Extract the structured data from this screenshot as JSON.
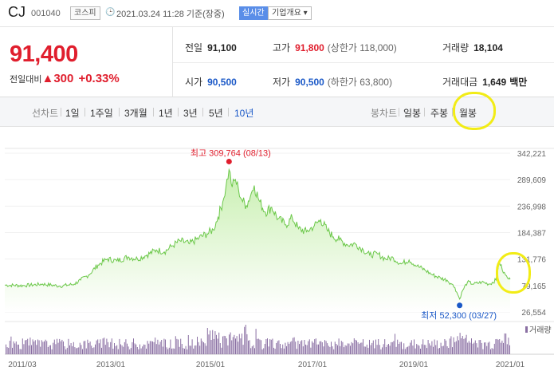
{
  "header": {
    "stock_name": "CJ",
    "stock_code": "001040",
    "market": "코스피",
    "datetime": "2021.03.24 11:28",
    "basis": "기준(장중)",
    "realtime_button": "실시간",
    "company_info_button": "기업개요 ▾"
  },
  "price": {
    "current": "91,400",
    "change_label": "전일대비",
    "change_arrow": "▲",
    "change_amount": "300",
    "change_pct": "+0.33%"
  },
  "summary": {
    "prev_close": {
      "label": "전일",
      "value": "91,100"
    },
    "high": {
      "label": "고가",
      "value": "91,800",
      "note": "(상한가 118,000)"
    },
    "volume": {
      "label": "거래량",
      "value": "18,104"
    },
    "open": {
      "label": "시가",
      "value": "90,500"
    },
    "low": {
      "label": "저가",
      "value": "90,500",
      "note": "(하한가 63,800)"
    },
    "trade_value": {
      "label": "거래대금",
      "value": "1,649",
      "unit": "백만"
    }
  },
  "periods": {
    "line_label": "선차트",
    "items": [
      "1일",
      "1주일",
      "3개월",
      "1년",
      "3년",
      "5년",
      "10년"
    ],
    "selected": "10년",
    "candle_label": "봉차트",
    "candle_items": [
      "일봉",
      "주봉",
      "월봉"
    ],
    "highlighted": "월봉"
  },
  "chart_data": {
    "type": "area",
    "y_ticks": [
      "342,221",
      "289,609",
      "236,998",
      "184,387",
      "131,776",
      "79,165",
      "26,554"
    ],
    "ylim": [
      26554,
      342221
    ],
    "x_ticks": [
      "2011/03",
      "2013/01",
      "2015/01",
      "2017/01",
      "2019/01",
      "2021/01"
    ],
    "high_label": "최고",
    "high_value": "309,764",
    "high_date": "(08/13)",
    "low_label": "최저",
    "low_value": "52,300",
    "low_date": "(03/27)",
    "volume_legend": "거래량",
    "line_color": "#6cc84a",
    "fill_color": "#c8efb0",
    "high_marker_color": "#e01e2d",
    "low_marker_color": "#1a58c7",
    "series_anchors": [
      [
        0,
        80000
      ],
      [
        24,
        79000
      ],
      [
        48,
        82000
      ],
      [
        70,
        78000
      ],
      [
        88,
        82000
      ],
      [
        96,
        90000
      ],
      [
        106,
        100000
      ],
      [
        118,
        120000
      ],
      [
        130,
        132000
      ],
      [
        142,
        128000
      ],
      [
        156,
        136000
      ],
      [
        168,
        132000
      ],
      [
        180,
        140000
      ],
      [
        192,
        150000
      ],
      [
        202,
        146000
      ],
      [
        212,
        158000
      ],
      [
        222,
        168000
      ],
      [
        234,
        162000
      ],
      [
        246,
        174000
      ],
      [
        256,
        182000
      ],
      [
        264,
        190000
      ],
      [
        270,
        215000
      ],
      [
        276,
        245000
      ],
      [
        280,
        275000
      ],
      [
        284,
        309764
      ],
      [
        288,
        275000
      ],
      [
        292,
        290000
      ],
      [
        296,
        270000
      ],
      [
        300,
        250000
      ],
      [
        306,
        238000
      ],
      [
        312,
        262000
      ],
      [
        316,
        278000
      ],
      [
        322,
        248000
      ],
      [
        330,
        225000
      ],
      [
        338,
        235000
      ],
      [
        346,
        212000
      ],
      [
        356,
        200000
      ],
      [
        364,
        214000
      ],
      [
        372,
        192000
      ],
      [
        382,
        186000
      ],
      [
        392,
        198000
      ],
      [
        400,
        210000
      ],
      [
        408,
        190000
      ],
      [
        416,
        176000
      ],
      [
        424,
        170000
      ],
      [
        434,
        160000
      ],
      [
        444,
        162000
      ],
      [
        454,
        150000
      ],
      [
        462,
        140000
      ],
      [
        472,
        142000
      ],
      [
        482,
        132000
      ],
      [
        492,
        134000
      ],
      [
        502,
        122000
      ],
      [
        512,
        130000
      ],
      [
        522,
        118000
      ],
      [
        532,
        110000
      ],
      [
        542,
        100000
      ],
      [
        552,
        94000
      ],
      [
        560,
        90000
      ],
      [
        566,
        82000
      ],
      [
        570,
        75000
      ],
      [
        576,
        52300
      ],
      [
        580,
        70000
      ],
      [
        586,
        86000
      ],
      [
        594,
        82000
      ],
      [
        604,
        86000
      ],
      [
        614,
        82000
      ],
      [
        622,
        90000
      ],
      [
        626,
        128000
      ],
      [
        630,
        110000
      ],
      [
        634,
        100000
      ],
      [
        638,
        92000
      ],
      [
        640,
        91400
      ]
    ]
  }
}
